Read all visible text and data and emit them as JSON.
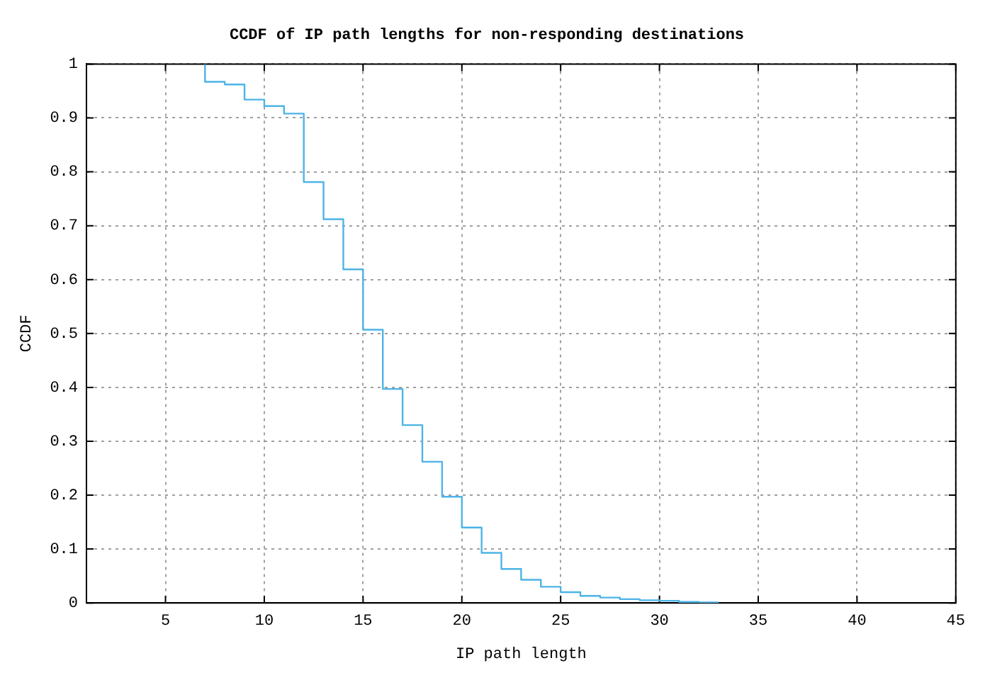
{
  "chart_data": {
    "type": "step",
    "title": "CCDF of IP path lengths for non-responding destinations",
    "xlabel": "IP path length",
    "ylabel": "CCDF",
    "x": [
      7,
      7,
      8,
      9,
      10,
      11,
      12,
      13,
      14,
      15,
      16,
      17,
      18,
      19,
      20,
      21,
      22,
      23,
      24,
      25,
      26,
      27,
      28,
      29,
      30,
      31,
      32,
      33
    ],
    "series": [
      {
        "color": "#4cb4e6",
        "values": [
          1,
          0.967,
          0.962,
          0.934,
          0.922,
          0.908,
          0.781,
          0.712,
          0.619,
          0.507,
          0.397,
          0.33,
          0.262,
          0.197,
          0.14,
          0.093,
          0.063,
          0.043,
          0.03,
          0.02,
          0.013,
          0.01,
          0.007,
          0.005,
          0.004,
          0.002,
          0.001,
          0.001
        ]
      }
    ],
    "xlim": [
      1,
      45
    ],
    "xticks": [
      5,
      10,
      15,
      20,
      25,
      30,
      35,
      40,
      45
    ],
    "ylim": [
      0,
      1
    ],
    "yticks": [
      0,
      0.1,
      0.2,
      0.3,
      0.4,
      0.5,
      0.6,
      0.7,
      0.8,
      0.9,
      1
    ],
    "grid": true,
    "legend": false
  }
}
